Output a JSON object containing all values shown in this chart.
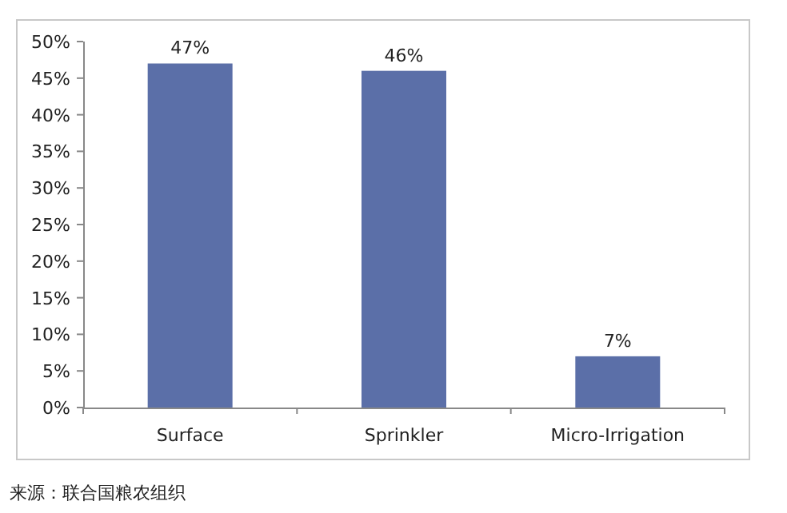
{
  "chart_data": {
    "type": "bar",
    "categories": [
      "Surface",
      "Sprinkler",
      "Micro-Irrigation"
    ],
    "values": [
      47,
      46,
      7
    ],
    "value_labels": [
      "47%",
      "46%",
      "7%"
    ],
    "color": "#5b6fa8",
    "ylim": [
      0,
      50
    ],
    "yticks": [
      {
        "value": 0,
        "label": "0%"
      },
      {
        "value": 5,
        "label": "5%"
      },
      {
        "value": 10,
        "label": "10%"
      },
      {
        "value": 15,
        "label": "15%"
      },
      {
        "value": 20,
        "label": "20%"
      },
      {
        "value": 25,
        "label": "25%"
      },
      {
        "value": 30,
        "label": "30%"
      },
      {
        "value": 35,
        "label": "35%"
      },
      {
        "value": 40,
        "label": "40%"
      },
      {
        "value": 45,
        "label": "45%"
      },
      {
        "value": 50,
        "label": "50%"
      }
    ],
    "annotations": [
      "来源：联合国粮农组织"
    ]
  }
}
